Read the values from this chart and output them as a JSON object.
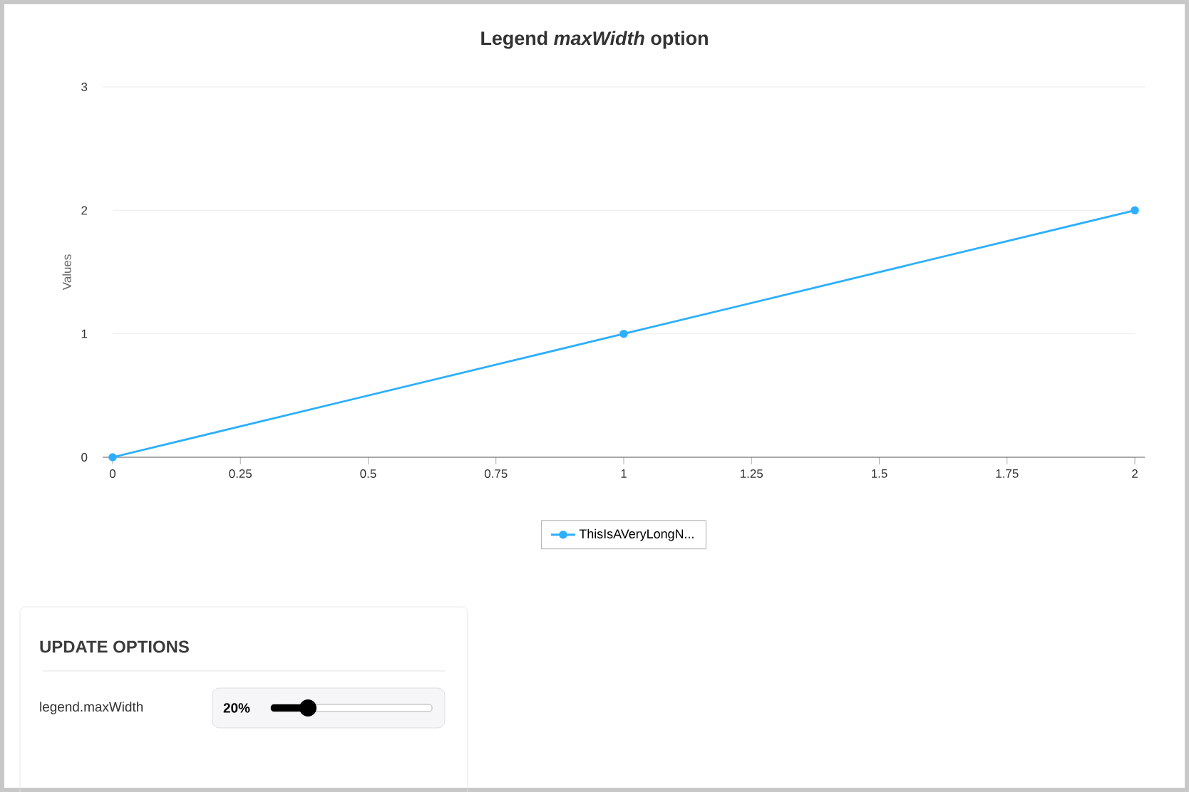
{
  "chart_data": {
    "type": "line",
    "title": "Legend *maxWidth* option",
    "ylabel": "Values",
    "x": [
      0,
      1,
      2
    ],
    "series": [
      {
        "name": "ThisIsAVeryLongN...",
        "color": "#2caffe",
        "values": [
          0,
          1,
          2
        ]
      }
    ],
    "xlim": [
      0,
      2
    ],
    "ylim": [
      0,
      3
    ],
    "xticks": [
      0,
      0.25,
      0.5,
      0.75,
      1,
      1.25,
      1.5,
      1.75,
      2
    ],
    "yticks": [
      0,
      1,
      2,
      3
    ],
    "grid": "y",
    "legend": "bottom",
    "marker": "circle",
    "line_style": "solid",
    "annotations": [
      "UPDATE OPTIONS",
      "legend.maxWidth",
      "20%"
    ]
  }
}
